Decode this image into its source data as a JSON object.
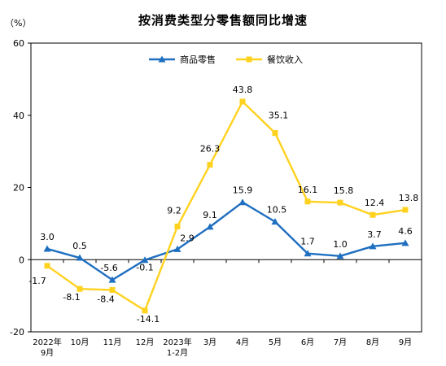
{
  "chart_data": {
    "type": "line",
    "title": "按消费类型分零售额同比增速",
    "unit": "（%）",
    "ylim": [
      -20,
      60
    ],
    "yticks": [
      -20,
      0,
      20,
      40,
      60
    ],
    "grid": false,
    "legend_position": "top",
    "categories": [
      [
        "2022年",
        "9月"
      ],
      [
        "10月"
      ],
      [
        "11月"
      ],
      [
        "12月"
      ],
      [
        "2023年",
        "1-2月"
      ],
      [
        "3月"
      ],
      [
        "4月"
      ],
      [
        "5月"
      ],
      [
        "6月"
      ],
      [
        "7月"
      ],
      [
        "8月"
      ],
      [
        "9月"
      ]
    ],
    "series": [
      {
        "name": "商品零售",
        "color": "#1f6fc0",
        "marker": "triangle",
        "values": [
          3.0,
          0.5,
          -5.6,
          -0.1,
          2.9,
          9.1,
          15.9,
          10.5,
          1.7,
          1.0,
          3.7,
          4.6
        ],
        "labels": [
          "3.0",
          "0.5",
          "-5.6",
          "-0.1",
          "2.9",
          "9.1",
          "15.9",
          "10.5",
          "1.7",
          "1.0",
          "3.7",
          "4.6"
        ]
      },
      {
        "name": "餐饮收入",
        "color": "#ffd21f",
        "marker": "square",
        "values": [
          -1.7,
          -8.1,
          -8.4,
          -14.1,
          9.2,
          26.3,
          43.8,
          35.1,
          16.1,
          15.8,
          12.4,
          13.8
        ],
        "labels": [
          "-1.7",
          "-8.1",
          "-8.4",
          "-14.1",
          "9.2",
          "26.3",
          "43.8",
          "35.1",
          "16.1",
          "15.8",
          "12.4",
          "13.8"
        ]
      }
    ]
  }
}
